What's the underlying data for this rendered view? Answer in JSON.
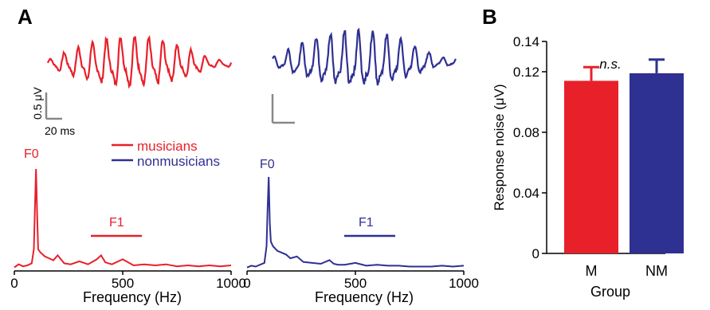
{
  "panels": {
    "a_label": "A",
    "b_label": "B"
  },
  "colors": {
    "musicians": "#e8202a",
    "nonmusicians": "#2e3092",
    "scalebar": "#888888",
    "axis": "#000000"
  },
  "scalebar": {
    "amplitude_label": "0.5 μV",
    "time_label": "20 ms"
  },
  "legend": {
    "musicians": "musicians",
    "nonmusicians": "nonmusicians"
  },
  "spectrum": {
    "f0_label": "F0",
    "f1_label": "F1",
    "xlabel": "Frequency (Hz)",
    "xticks": [
      "0",
      "500",
      "1000"
    ],
    "xlim": [
      0,
      1000
    ]
  },
  "chart_data": [
    {
      "type": "line",
      "panel": "A-spectrum-musicians",
      "xlabel": "Frequency (Hz)",
      "xlim": [
        0,
        1000
      ],
      "series": [
        {
          "name": "musicians",
          "x": [
            0,
            20,
            40,
            60,
            80,
            90,
            95,
            100,
            105,
            110,
            120,
            140,
            160,
            180,
            200,
            230,
            260,
            300,
            340,
            380,
            400,
            420,
            450,
            500,
            550,
            600,
            650,
            700,
            750,
            800,
            850,
            900,
            950,
            1000
          ],
          "y": [
            0.02,
            0.05,
            0.03,
            0.04,
            0.06,
            0.2,
            0.6,
            1.0,
            0.55,
            0.2,
            0.17,
            0.13,
            0.11,
            0.09,
            0.14,
            0.06,
            0.05,
            0.08,
            0.05,
            0.1,
            0.14,
            0.07,
            0.05,
            0.1,
            0.04,
            0.05,
            0.04,
            0.05,
            0.03,
            0.04,
            0.03,
            0.04,
            0.03,
            0.04
          ]
        }
      ]
    },
    {
      "type": "line",
      "panel": "A-spectrum-nonmusicians",
      "xlabel": "Frequency (Hz)",
      "xlim": [
        0,
        1000
      ],
      "series": [
        {
          "name": "nonmusicians",
          "x": [
            0,
            20,
            40,
            60,
            80,
            90,
            95,
            100,
            105,
            110,
            120,
            140,
            160,
            180,
            200,
            230,
            260,
            300,
            340,
            380,
            400,
            420,
            450,
            500,
            550,
            600,
            650,
            700,
            750,
            800,
            850,
            900,
            950,
            1000
          ],
          "y": [
            0.02,
            0.04,
            0.03,
            0.05,
            0.07,
            0.25,
            0.65,
            1.0,
            0.5,
            0.3,
            0.25,
            0.2,
            0.18,
            0.16,
            0.12,
            0.14,
            0.08,
            0.07,
            0.06,
            0.1,
            0.06,
            0.05,
            0.05,
            0.07,
            0.04,
            0.05,
            0.04,
            0.04,
            0.03,
            0.03,
            0.03,
            0.04,
            0.03,
            0.04
          ]
        }
      ]
    },
    {
      "type": "bar",
      "panel": "B",
      "title": "",
      "categories": [
        "M",
        "NM"
      ],
      "values": [
        0.114,
        0.119
      ],
      "errors": [
        0.009,
        0.009
      ],
      "xlabel": "Group",
      "ylabel": "Response noise (μV)",
      "ylim": [
        0,
        0.14
      ],
      "yticks": [
        "0",
        "0.04",
        "0.08",
        "0.12",
        "0.14"
      ],
      "ytick_values": [
        0,
        0.04,
        0.08,
        0.12,
        0.14
      ],
      "annotation": "n.s."
    }
  ]
}
